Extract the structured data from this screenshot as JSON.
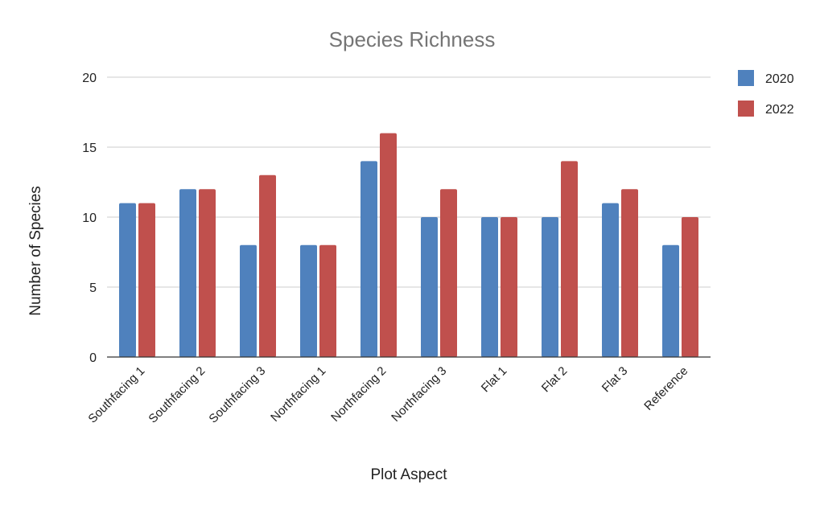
{
  "chart_data": {
    "type": "bar",
    "title": "Species Richness",
    "xlabel": "Plot Aspect",
    "ylabel": "Number of Species",
    "ylim": [
      0,
      20
    ],
    "yticks": [
      0,
      5,
      10,
      15,
      20
    ],
    "grid": true,
    "legend_position": "top-right",
    "categories": [
      "Southfacing 1",
      "Southfacing 2",
      "Southfacing 3",
      "Northfacing 1",
      "Northfacing 2",
      "Northfacing 3",
      "Flat 1",
      "Flat 2",
      "Flat 3",
      "Reference"
    ],
    "series": [
      {
        "name": "2020",
        "color": "#4f81bd",
        "values": [
          11,
          12,
          8,
          8,
          14,
          10,
          10,
          10,
          11,
          8
        ]
      },
      {
        "name": "2022",
        "color": "#c0504d",
        "values": [
          11,
          12,
          13,
          8,
          16,
          12,
          10,
          14,
          12,
          10
        ]
      }
    ]
  }
}
